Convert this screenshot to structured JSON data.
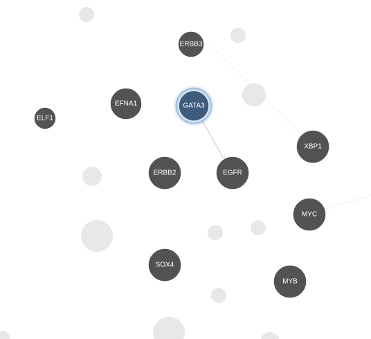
{
  "graph": {
    "selected_node": "GATA3",
    "colors": {
      "node_fill": "#4e4e4e",
      "node_stroke": "#ffffff",
      "selected_fill": "#3f5d7d",
      "selected_glow": "#8fb3d9",
      "faded_fill": "#e6e6e6",
      "edge_active": "#b8c8d8",
      "edge_faded": "#f0f0f0"
    },
    "nodes": [
      {
        "id": "ERBB3",
        "label": "ERBB3"
      },
      {
        "id": "EFNA1",
        "label": "EFNA1"
      },
      {
        "id": "GATA3",
        "label": "GATA3"
      },
      {
        "id": "ELF1",
        "label": "ELF1"
      },
      {
        "id": "XBP1",
        "label": "XBP1"
      },
      {
        "id": "ERBB2",
        "label": "ERBB2"
      },
      {
        "id": "EGFR",
        "label": "EGFR"
      },
      {
        "id": "MYC",
        "label": "MYC"
      },
      {
        "id": "SOX4",
        "label": "SOX4"
      },
      {
        "id": "MYB",
        "label": "MYB"
      }
    ],
    "edges": [
      {
        "source": "GATA3",
        "target": "EGFR",
        "active": true
      },
      {
        "source": "ERBB3",
        "target": "XBP1",
        "active": false
      },
      {
        "source": "MYC",
        "target": "offscreen-right",
        "active": false
      }
    ]
  }
}
